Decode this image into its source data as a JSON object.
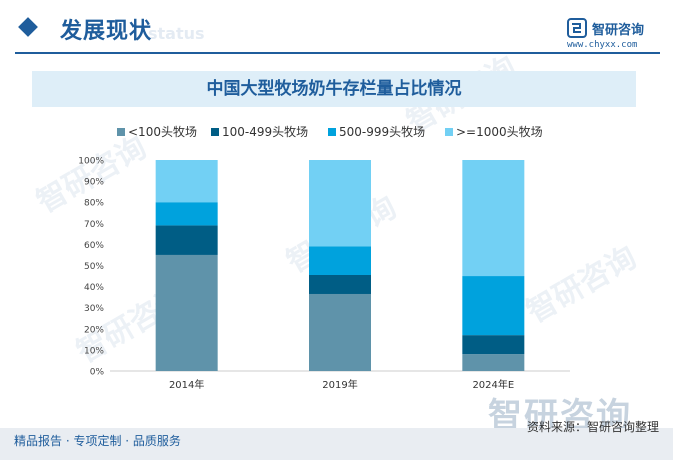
{
  "header": {
    "section_title": "发展现状",
    "section_watermark": "status",
    "brand_name": "智研咨询",
    "brand_url": "www.chyxx.com"
  },
  "watermark": "智研咨询",
  "chart_data": {
    "type": "bar",
    "stacked": true,
    "title": "中国大型牧场奶牛存栏量占比情况",
    "categories": [
      "2014年",
      "2019年",
      "2024年E"
    ],
    "series": [
      {
        "name": "<100头牧场",
        "color": "#5f93aa",
        "values": [
          55,
          36.5,
          8
        ]
      },
      {
        "name": "100-499头牧场",
        "color": "#005d85",
        "values": [
          14,
          9,
          9
        ]
      },
      {
        "name": "500-999头牧场",
        "color": "#00a2dd",
        "values": [
          11,
          13.5,
          28
        ]
      },
      {
        "name": ">=1000头牧场",
        "color": "#72d0f4",
        "values": [
          20,
          41,
          55
        ]
      }
    ],
    "ylim": [
      0,
      100
    ],
    "yticks": [
      "0%",
      "10%",
      "20%",
      "30%",
      "40%",
      "50%",
      "60%",
      "70%",
      "80%",
      "90%",
      "100%"
    ],
    "legend_position": "top",
    "grid": false
  },
  "footer": {
    "left": "精品报告 · 专项定制 · 品质服务",
    "source": "资料来源：智研咨询整理"
  }
}
